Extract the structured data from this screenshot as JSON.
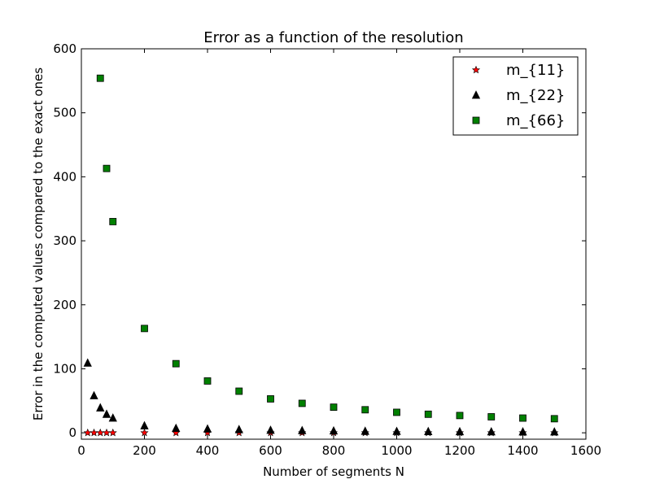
{
  "chart_data": {
    "type": "scatter",
    "title": "Error as a function of the resolution",
    "xlabel": "Number of segments N",
    "ylabel": "Error in the computed values compared to the exact ones",
    "xlim": [
      0,
      1600
    ],
    "ylim": [
      -10,
      600
    ],
    "xticks": [
      0,
      200,
      400,
      600,
      800,
      1000,
      1200,
      1400,
      1600
    ],
    "yticks": [
      0,
      100,
      200,
      300,
      400,
      500,
      600
    ],
    "grid": false,
    "legend_position": "top-right",
    "series": [
      {
        "name": "m_{11}",
        "marker": "star",
        "color": "#ff0000",
        "x": [
          20,
          40,
          60,
          80,
          100,
          200,
          300,
          400,
          500,
          600,
          700,
          800,
          900,
          1000,
          1100,
          1200,
          1300,
          1400,
          1500
        ],
        "y": [
          0,
          0,
          0,
          0,
          0,
          0,
          0,
          0,
          0,
          0,
          0,
          0,
          0,
          0,
          0,
          0,
          0,
          0,
          0
        ]
      },
      {
        "name": "m_{22}",
        "marker": "triangle",
        "color": "#000000",
        "x": [
          20,
          40,
          60,
          80,
          100,
          200,
          300,
          400,
          500,
          600,
          700,
          800,
          900,
          1000,
          1100,
          1200,
          1300,
          1400,
          1500
        ],
        "y": [
          109,
          58,
          39,
          29,
          23,
          11,
          7,
          6,
          5,
          4,
          3.5,
          3,
          2.5,
          2.2,
          2,
          1.8,
          1.6,
          1.5,
          1.4
        ]
      },
      {
        "name": "m_{66}",
        "marker": "square",
        "color": "#008000",
        "x": [
          60,
          80,
          100,
          200,
          300,
          400,
          500,
          600,
          700,
          800,
          900,
          1000,
          1100,
          1200,
          1300,
          1400,
          1500
        ],
        "y": [
          554,
          413,
          330,
          163,
          108,
          81,
          65,
          53,
          46,
          40,
          36,
          32,
          29,
          27,
          25,
          23,
          22
        ]
      }
    ]
  }
}
